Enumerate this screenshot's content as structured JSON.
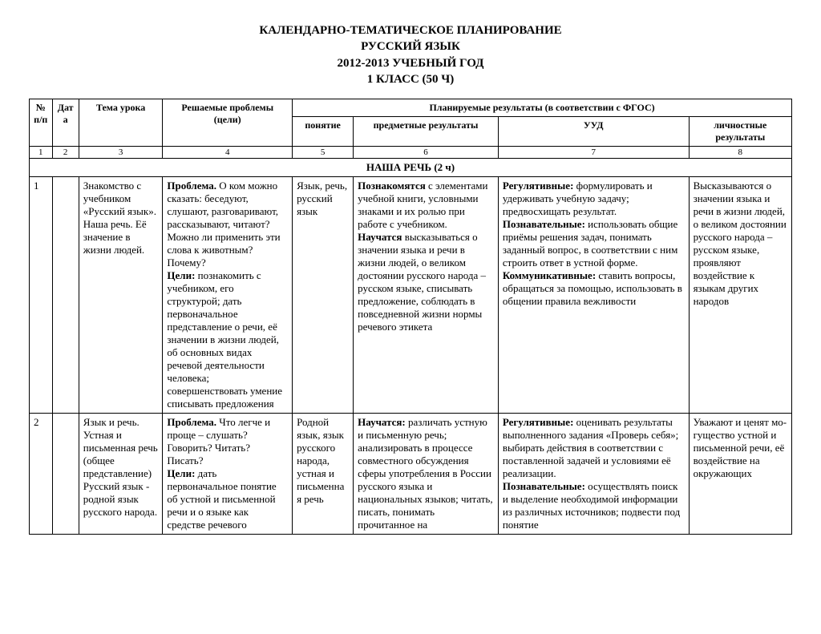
{
  "title": {
    "line1": "КАЛЕНДАРНО-ТЕМАТИЧЕСКОЕ ПЛАНИРОВАНИЕ",
    "line2": "РУССКИЙ ЯЗЫК",
    "line3": "2012-2013 УЧЕБНЫЙ ГОД",
    "line4": "1  КЛАСС (50 Ч)"
  },
  "headers": {
    "num": "№ п/п",
    "date": "Дата",
    "topic": "Тема урока",
    "problems": "Решаемые проблемы (цели)",
    "planned": "Планируемые результаты (в соответствии с ФГОС)",
    "concept": "понятие",
    "subject": "предметные результаты",
    "uud": "УУД",
    "personal": "личностные результаты"
  },
  "colnums": {
    "c1": "1",
    "c2": "2",
    "c3": "3",
    "c4": "4",
    "c5": "5",
    "c6": "6",
    "c7": "7",
    "c8": "8"
  },
  "section1": "НАША РЕЧЬ (2 ч)",
  "row1": {
    "num": "1",
    "topic": "Знакомство с учебником «Русский язык». Наша речь. Её значение в жизни людей.",
    "prob_b1": "Проблема.",
    "prob_t1": " О ком можно сказать: беседуют, слушают, разговаривают, рассказывают, читают? Можно ли применить эти слова к животным? Почему?",
    "prob_b2": "Цели:",
    "prob_t2": " познакомить с учебником, его структурой; дать первоначальное представление о речи, её значении в жизни людей, об основных видах речевой деятельности человека; совершенствовать умение списывать предложения",
    "concept": "Язык, речь, русский язык",
    "pred_b1": "Познакомятся",
    "pred_t1": " с элементами учебной книги, условными знаками и их ролью при работе с учебником.",
    "pred_b2": "Научатся",
    "pred_t2": " высказываться о значении языка и речи в жизни людей, о великом достоянии русского народа – русском языке, списывать предложение, соблюдать в повседневной жизни нормы речевого этикета",
    "uud_b1": "Регулятивные:",
    "uud_t1": " формулировать и удерживать учебную задачу; предвосхищать результат.",
    "uud_b2": "Познавательные:",
    "uud_t2": " использовать общие приёмы решения задач, понимать заданный вопрос, в соответствии с ним строить ответ в устной форме.",
    "uud_b3": "Коммуникативные:",
    "uud_t3": " ставить вопросы, обращаться за помощью, использовать в общении правила вежливости",
    "personal": "Высказываются о значении языка и речи в жизни людей, о великом достоянии русского народа – русском языке, проявляют воздействие к языкам других народов"
  },
  "row2": {
    "num": "2",
    "topic": "Язык и речь. Устная и письменная речь  (общее представление) Русский язык - родной язык русского народа.",
    "prob_b1": "Проблема.",
    "prob_t1": " Что легче и проще – слушать? Говорить? Читать? Писать?",
    "prob_b2": "Цели:",
    "prob_t2": " дать первоначальное понятие об устной и письменной речи и о языке как средстве речевого",
    "concept": "Родной язык, язык русского народа, устная и письменная речь",
    "pred_b1": "Научатся:",
    "pred_t1": " различать устную и письменную речь; анализировать в процессе совместного обсуждения сферы употребления в России русского языка и национальных языков; читать, писать, понимать прочитанное на",
    "uud_b1": "Регулятивные:",
    "uud_t1": " оценивать результаты выполненного задания «Проверь себя»; выбирать действия в соответствии с поставленной задачей и условиями её реализации.",
    "uud_b2": "Познавательные:",
    "uud_t2": " осуществлять поиск и выделение необходимой информации из различных источников; подвести под понятие",
    "personal": "Уважают и ценят мо-гущество устной и письменной речи, её воздействие на окружающих"
  }
}
